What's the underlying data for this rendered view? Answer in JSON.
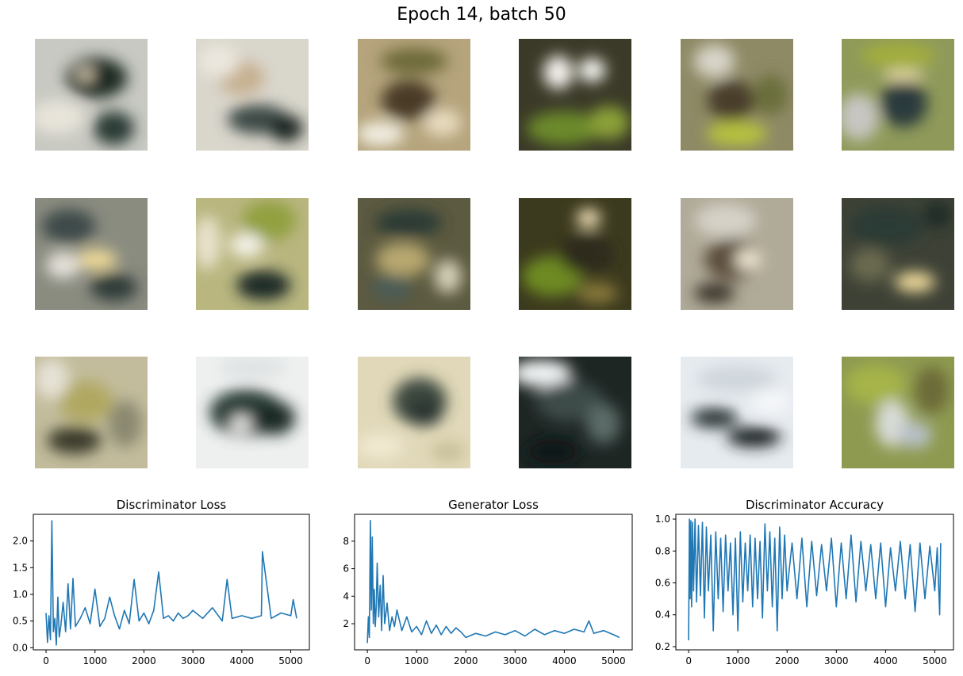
{
  "figure": {
    "suptitle": "Epoch 14, batch 50"
  },
  "samples": {
    "rows": 3,
    "cols": 6,
    "tiles": [
      {
        "name": "generated-sample-1",
        "base": "#c8c9c2",
        "blobs": [
          [
            "#1a2a22",
            0.55,
            0.35,
            0.45,
            0.3
          ],
          [
            "#e8e4da",
            0.2,
            0.7,
            0.4,
            0.25
          ],
          [
            "#f2e6c8",
            0.45,
            0.32,
            0.12,
            0.08
          ],
          [
            "#2c3a34",
            0.7,
            0.8,
            0.3,
            0.25
          ]
        ]
      },
      {
        "name": "generated-sample-2",
        "base": "#d9d6cc",
        "blobs": [
          [
            "#c6b090",
            0.4,
            0.35,
            0.35,
            0.25
          ],
          [
            "#3d4a46",
            0.55,
            0.72,
            0.45,
            0.22
          ],
          [
            "#1d2622",
            0.8,
            0.8,
            0.25,
            0.2
          ],
          [
            "#ebe7de",
            0.2,
            0.2,
            0.3,
            0.25
          ]
        ]
      },
      {
        "name": "generated-sample-3",
        "base": "#b5a47c",
        "blobs": [
          [
            "#6e6a3a",
            0.5,
            0.2,
            0.5,
            0.2
          ],
          [
            "#4a3a28",
            0.45,
            0.55,
            0.4,
            0.3
          ],
          [
            "#f1eee2",
            0.2,
            0.85,
            0.35,
            0.18
          ],
          [
            "#e8dcc0",
            0.75,
            0.75,
            0.28,
            0.2
          ]
        ]
      },
      {
        "name": "generated-sample-4",
        "base": "#3b3a28",
        "blobs": [
          [
            "#f3f1ec",
            0.35,
            0.3,
            0.22,
            0.25
          ],
          [
            "#f7f6f2",
            0.65,
            0.28,
            0.2,
            0.18
          ],
          [
            "#6c8a2c",
            0.4,
            0.8,
            0.55,
            0.25
          ],
          [
            "#8aa038",
            0.8,
            0.75,
            0.3,
            0.25
          ]
        ]
      },
      {
        "name": "generated-sample-5",
        "base": "#8e8a66",
        "blobs": [
          [
            "#d8d4c8",
            0.3,
            0.2,
            0.3,
            0.25
          ],
          [
            "#4a3e2c",
            0.45,
            0.55,
            0.35,
            0.3
          ],
          [
            "#b7c23e",
            0.5,
            0.85,
            0.45,
            0.18
          ],
          [
            "#6a6e3a",
            0.8,
            0.5,
            0.25,
            0.3
          ]
        ]
      },
      {
        "name": "generated-sample-6",
        "base": "#8f9a5a",
        "blobs": [
          [
            "#a2ad3e",
            0.5,
            0.15,
            0.55,
            0.2
          ],
          [
            "#2b3a3c",
            0.55,
            0.58,
            0.35,
            0.35
          ],
          [
            "#f0e2b0",
            0.55,
            0.33,
            0.3,
            0.08
          ],
          [
            "#c7c6c2",
            0.15,
            0.7,
            0.3,
            0.35
          ]
        ]
      },
      {
        "name": "generated-sample-7",
        "base": "#8a8c80",
        "blobs": [
          [
            "#3e4a48",
            0.3,
            0.25,
            0.4,
            0.25
          ],
          [
            "#f2dd98",
            0.55,
            0.55,
            0.3,
            0.15
          ],
          [
            "#e6e2dc",
            0.25,
            0.6,
            0.25,
            0.2
          ],
          [
            "#2e3a38",
            0.7,
            0.8,
            0.35,
            0.2
          ]
        ]
      },
      {
        "name": "generated-sample-8",
        "base": "#b9b680",
        "blobs": [
          [
            "#92a040",
            0.65,
            0.2,
            0.4,
            0.3
          ],
          [
            "#f4f2e8",
            0.45,
            0.42,
            0.25,
            0.18
          ],
          [
            "#1f2a26",
            0.6,
            0.78,
            0.4,
            0.22
          ],
          [
            "#e8e2cc",
            0.1,
            0.4,
            0.2,
            0.4
          ]
        ]
      },
      {
        "name": "generated-sample-9",
        "base": "#5c5a40",
        "blobs": [
          [
            "#2a3a34",
            0.45,
            0.22,
            0.5,
            0.2
          ],
          [
            "#b8a870",
            0.4,
            0.55,
            0.4,
            0.25
          ],
          [
            "#4c5c56",
            0.3,
            0.8,
            0.3,
            0.2
          ],
          [
            "#d5d0b8",
            0.8,
            0.7,
            0.2,
            0.25
          ]
        ]
      },
      {
        "name": "generated-sample-10",
        "base": "#3c3a1e",
        "blobs": [
          [
            "#f4e4bc",
            0.62,
            0.18,
            0.18,
            0.14
          ],
          [
            "#6e8a22",
            0.3,
            0.7,
            0.45,
            0.3
          ],
          [
            "#2e2a1a",
            0.6,
            0.5,
            0.4,
            0.3
          ],
          [
            "#8a7a3a",
            0.7,
            0.85,
            0.3,
            0.15
          ]
        ]
      },
      {
        "name": "generated-sample-11",
        "base": "#b0aa98",
        "blobs": [
          [
            "#d6d2c8",
            0.4,
            0.2,
            0.45,
            0.25
          ],
          [
            "#5c4e3a",
            0.45,
            0.55,
            0.4,
            0.3
          ],
          [
            "#f0e6d2",
            0.6,
            0.55,
            0.2,
            0.15
          ],
          [
            "#3a342a",
            0.3,
            0.85,
            0.3,
            0.15
          ]
        ]
      },
      {
        "name": "generated-sample-12",
        "base": "#3e4236",
        "blobs": [
          [
            "#2a3a34",
            0.4,
            0.25,
            0.55,
            0.3
          ],
          [
            "#f0dc9c",
            0.65,
            0.75,
            0.3,
            0.15
          ],
          [
            "#6a6a50",
            0.25,
            0.6,
            0.3,
            0.25
          ],
          [
            "#1e2c26",
            0.85,
            0.15,
            0.2,
            0.2
          ]
        ]
      },
      {
        "name": "generated-sample-13",
        "base": "#c2bc9c",
        "blobs": [
          [
            "#b0a860",
            0.45,
            0.4,
            0.4,
            0.3
          ],
          [
            "#3a3a2a",
            0.35,
            0.75,
            0.4,
            0.2
          ],
          [
            "#e6e2d6",
            0.15,
            0.2,
            0.25,
            0.3
          ],
          [
            "#8a8870",
            0.8,
            0.6,
            0.25,
            0.35
          ]
        ]
      },
      {
        "name": "generated-sample-14",
        "base": "#eef0f0",
        "blobs": [
          [
            "#2c3c38",
            0.45,
            0.5,
            0.55,
            0.35
          ],
          [
            "#1e2a28",
            0.7,
            0.55,
            0.3,
            0.25
          ],
          [
            "#f2f2ee",
            0.4,
            0.6,
            0.15,
            0.12
          ],
          [
            "#dfe2e2",
            0.5,
            0.1,
            0.5,
            0.15
          ]
        ]
      },
      {
        "name": "generated-sample-15",
        "base": "#e0d8b8",
        "blobs": [
          [
            "#3c4840",
            0.55,
            0.4,
            0.4,
            0.35
          ],
          [
            "#f0e8d0",
            0.2,
            0.8,
            0.35,
            0.2
          ],
          [
            "#2a3430",
            0.6,
            0.5,
            0.25,
            0.2
          ],
          [
            "#c8c09a",
            0.8,
            0.85,
            0.25,
            0.15
          ]
        ]
      },
      {
        "name": "generated-sample-16",
        "base": "#1e2624",
        "blobs": [
          [
            "#f2f4f4",
            0.2,
            0.15,
            0.45,
            0.2
          ],
          [
            "#3e4c48",
            0.45,
            0.4,
            0.5,
            0.3
          ],
          [
            "#0f1614",
            0.3,
            0.85,
            0.4,
            0.2
          ],
          [
            "#5c6c68",
            0.75,
            0.6,
            0.25,
            0.3
          ]
        ]
      },
      {
        "name": "generated-sample-17",
        "base": "#e6ebf0",
        "blobs": [
          [
            "#2a3436",
            0.3,
            0.55,
            0.35,
            0.15
          ],
          [
            "#1a2422",
            0.65,
            0.72,
            0.4,
            0.15
          ],
          [
            "#cfd6dc",
            0.5,
            0.2,
            0.6,
            0.2
          ],
          [
            "#f4f6f8",
            0.8,
            0.4,
            0.3,
            0.2
          ]
        ]
      },
      {
        "name": "generated-sample-18",
        "base": "#8e9a50",
        "blobs": [
          [
            "#a6b44a",
            0.3,
            0.25,
            0.45,
            0.3
          ],
          [
            "#d8dcd8",
            0.45,
            0.6,
            0.25,
            0.35
          ],
          [
            "#b8c0c8",
            0.65,
            0.7,
            0.25,
            0.2
          ],
          [
            "#6c6a38",
            0.8,
            0.3,
            0.25,
            0.35
          ]
        ]
      }
    ]
  },
  "chart_data": [
    {
      "type": "line",
      "title": "Discriminator Loss",
      "xlim": [
        -260,
        5380
      ],
      "ylim": [
        -0.04,
        2.5
      ],
      "xticks": [
        0,
        1000,
        2000,
        3000,
        4000,
        5000
      ],
      "yticks": [
        0.0,
        0.5,
        1.0,
        1.5,
        2.0
      ],
      "ytick_labels": [
        "0.0",
        "0.5",
        "1.0",
        "1.5",
        "2.0"
      ],
      "series": [
        {
          "color": "#1f77b4",
          "x": [
            0,
            30,
            60,
            90,
            120,
            150,
            180,
            210,
            240,
            270,
            300,
            350,
            400,
            450,
            500,
            550,
            600,
            700,
            800,
            900,
            1000,
            1100,
            1200,
            1300,
            1400,
            1500,
            1600,
            1700,
            1800,
            1900,
            2000,
            2100,
            2200,
            2300,
            2400,
            2500,
            2600,
            2700,
            2800,
            2900,
            3000,
            3200,
            3400,
            3600,
            3700,
            3800,
            4000,
            4200,
            4400,
            4420,
            4600,
            4800,
            5000,
            5050,
            5120
          ],
          "y": [
            0.65,
            0.1,
            0.6,
            0.15,
            2.38,
            0.3,
            0.55,
            0.05,
            0.95,
            0.2,
            0.4,
            0.85,
            0.3,
            1.2,
            0.35,
            1.3,
            0.4,
            0.55,
            0.75,
            0.45,
            1.1,
            0.4,
            0.55,
            0.95,
            0.6,
            0.35,
            0.7,
            0.45,
            1.28,
            0.5,
            0.65,
            0.45,
            0.7,
            1.42,
            0.55,
            0.6,
            0.5,
            0.65,
            0.55,
            0.6,
            0.7,
            0.55,
            0.75,
            0.5,
            1.28,
            0.55,
            0.6,
            0.55,
            0.6,
            1.8,
            0.55,
            0.65,
            0.6,
            0.9,
            0.55
          ]
        }
      ]
    },
    {
      "type": "line",
      "title": "Generator Loss",
      "xlim": [
        -260,
        5380
      ],
      "ylim": [
        0.1,
        9.95
      ],
      "xticks": [
        0,
        1000,
        2000,
        3000,
        4000,
        5000
      ],
      "yticks": [
        2,
        4,
        6,
        8
      ],
      "ytick_labels": [
        "2",
        "4",
        "6",
        "8"
      ],
      "series": [
        {
          "color": "#1f77b4",
          "x": [
            0,
            20,
            40,
            60,
            80,
            100,
            120,
            140,
            160,
            180,
            200,
            230,
            260,
            290,
            320,
            350,
            400,
            450,
            500,
            550,
            600,
            700,
            800,
            900,
            1000,
            1100,
            1200,
            1300,
            1400,
            1500,
            1600,
            1700,
            1800,
            1900,
            2000,
            2200,
            2400,
            2600,
            2800,
            3000,
            3200,
            3400,
            3600,
            3800,
            4000,
            4200,
            4400,
            4500,
            4600,
            4800,
            5000,
            5120
          ],
          "y": [
            0.6,
            2.5,
            1.0,
            9.5,
            3.0,
            8.3,
            2.0,
            4.5,
            1.8,
            3.2,
            6.4,
            2.5,
            4.8,
            1.5,
            5.5,
            2.0,
            3.5,
            1.5,
            2.5,
            1.8,
            3.0,
            1.5,
            2.5,
            1.4,
            1.8,
            1.2,
            2.2,
            1.3,
            1.9,
            1.2,
            1.8,
            1.3,
            1.7,
            1.4,
            1.0,
            1.3,
            1.1,
            1.4,
            1.2,
            1.5,
            1.1,
            1.6,
            1.2,
            1.5,
            1.3,
            1.6,
            1.4,
            2.2,
            1.3,
            1.5,
            1.2,
            1.0
          ]
        }
      ]
    },
    {
      "type": "line",
      "title": "Discriminator Accuracy",
      "xlim": [
        -260,
        5380
      ],
      "ylim": [
        0.18,
        1.03
      ],
      "xticks": [
        0,
        1000,
        2000,
        3000,
        4000,
        5000
      ],
      "yticks": [
        0.2,
        0.4,
        0.6,
        0.8,
        1.0
      ],
      "ytick_labels": [
        "0.2",
        "0.4",
        "0.6",
        "0.8",
        "1.0"
      ],
      "series": [
        {
          "color": "#1f77b4",
          "x": [
            0,
            15,
            30,
            45,
            60,
            80,
            100,
            130,
            160,
            200,
            240,
            280,
            320,
            360,
            400,
            450,
            500,
            550,
            600,
            650,
            700,
            750,
            800,
            850,
            900,
            950,
            1000,
            1050,
            1100,
            1150,
            1200,
            1250,
            1300,
            1350,
            1400,
            1450,
            1500,
            1550,
            1600,
            1650,
            1700,
            1750,
            1800,
            1850,
            1900,
            1950,
            2000,
            2100,
            2200,
            2300,
            2400,
            2500,
            2600,
            2700,
            2800,
            2900,
            3000,
            3100,
            3200,
            3300,
            3400,
            3500,
            3600,
            3700,
            3800,
            3900,
            4000,
            4100,
            4200,
            4300,
            4400,
            4500,
            4600,
            4700,
            4800,
            4900,
            5000,
            5050,
            5100,
            5120
          ],
          "y": [
            0.24,
            1.0,
            0.5,
            0.99,
            0.45,
            0.98,
            0.55,
            1.0,
            0.48,
            0.96,
            0.52,
            0.98,
            0.38,
            0.95,
            0.55,
            0.9,
            0.3,
            0.92,
            0.5,
            0.88,
            0.42,
            0.9,
            0.55,
            0.85,
            0.4,
            0.88,
            0.3,
            0.92,
            0.48,
            0.85,
            0.55,
            0.9,
            0.45,
            0.88,
            0.5,
            0.86,
            0.38,
            0.97,
            0.55,
            0.92,
            0.45,
            0.88,
            0.3,
            0.95,
            0.5,
            0.9,
            0.55,
            0.85,
            0.5,
            0.88,
            0.45,
            0.86,
            0.52,
            0.84,
            0.55,
            0.88,
            0.45,
            0.85,
            0.5,
            0.9,
            0.48,
            0.86,
            0.55,
            0.84,
            0.5,
            0.85,
            0.45,
            0.82,
            0.55,
            0.86,
            0.5,
            0.84,
            0.42,
            0.85,
            0.5,
            0.83,
            0.55,
            0.82,
            0.4,
            0.85
          ]
        }
      ]
    }
  ]
}
